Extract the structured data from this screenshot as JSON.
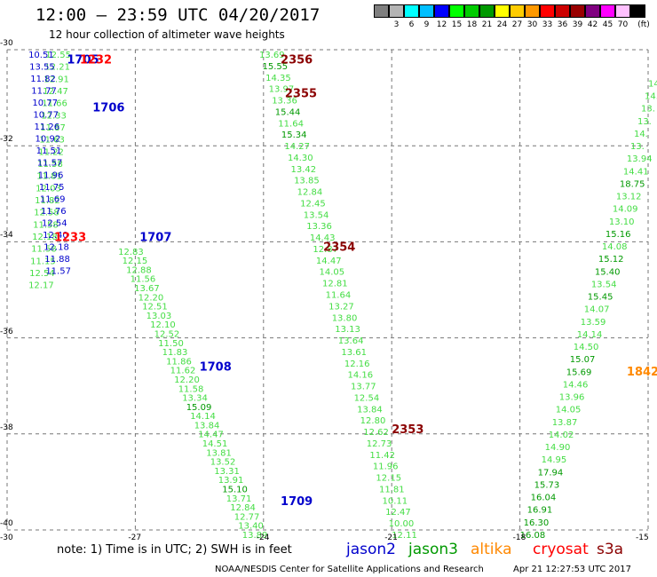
{
  "header": {
    "title": "12:00 – 23:59 UTC 04/20/2017",
    "subtitle": "12 hour collection of altimeter wave heights"
  },
  "color_scale": {
    "unit": "(ft)",
    "bins": [
      {
        "label": "",
        "color": "#7f7f7f"
      },
      {
        "label": "3",
        "color": "#b4b4b4"
      },
      {
        "label": "6",
        "color": "#00ffff"
      },
      {
        "label": "9",
        "color": "#00bfff"
      },
      {
        "label": "12",
        "color": "#0000ff"
      },
      {
        "label": "15",
        "color": "#00ff00"
      },
      {
        "label": "18",
        "color": "#00cc00"
      },
      {
        "label": "21",
        "color": "#009900"
      },
      {
        "label": "24",
        "color": "#ffff00"
      },
      {
        "label": "27",
        "color": "#ffcc00"
      },
      {
        "label": "30",
        "color": "#ff9900"
      },
      {
        "label": "33",
        "color": "#ff0000"
      },
      {
        "label": "36",
        "color": "#cc0000"
      },
      {
        "label": "39",
        "color": "#990000"
      },
      {
        "label": "42",
        "color": "#800080"
      },
      {
        "label": "45",
        "color": "#ff00ff"
      },
      {
        "label": "70",
        "color": "#ffc0ff"
      },
      {
        "label": "",
        "color": "#000000"
      }
    ]
  },
  "axes": {
    "lat_labels": [
      "-30",
      "-32",
      "-34",
      "-36",
      "-38",
      "-40"
    ],
    "lon_labels": [
      "-30",
      "-27",
      "-24",
      "-21",
      "-18",
      "-15"
    ],
    "lat_range": [
      -40,
      -30
    ],
    "lon_range": [
      -30,
      -15
    ]
  },
  "colors": {
    "grid": "#777777",
    "jason2": "#0000cc",
    "jason3": "#44dd44",
    "jason3_dark": "#009900",
    "altika": "#ff8800",
    "cryosat": "#ff0000",
    "s3a": "#8b0000"
  },
  "map_data": {
    "jason2_track1": {
      "start_lat": -30.0,
      "end_lat": -34.5,
      "start_lon": -29.5,
      "end_lon": -29.1,
      "values": [
        "10.51",
        "13.55",
        "11.82",
        "11.77",
        "10.77",
        "10.77",
        "11.26",
        "10.92",
        "11.51",
        "11.57",
        "11.96",
        "11.75",
        "11.69",
        "11.76",
        "12.54",
        "12.40",
        "12.18",
        "11.88",
        "11.57"
      ]
    },
    "jason3_track1": {
      "start_lat": -30.0,
      "end_lat": -34.8,
      "start_lon": -29.1,
      "end_lon": -29.5,
      "values": [
        "12.55",
        "12.21",
        "12.91",
        "12.47",
        "11.66",
        "12.33",
        "11.87",
        "11.63",
        "11.22",
        "11.58",
        "11.81",
        "12.03",
        "11.82",
        "12.58",
        "11.58",
        "12.18",
        "11.58",
        "11.15",
        "12.54",
        "12.17"
      ]
    },
    "track2": {
      "start_lat": -34.1,
      "end_lat": -40.0,
      "start_lon": -27.4,
      "end_lon": -24.5,
      "values": [
        "12.83",
        "12.15",
        "12.88",
        "11.56",
        "13.67",
        "12.20",
        "12.51",
        "13.03",
        "12.10",
        "12.52",
        "11.50",
        "11.83",
        "11.86",
        "11.62",
        "12.20",
        "11.58",
        "13.34",
        "15.09",
        "14.14",
        "13.84",
        "14.47",
        "14.51",
        "13.81",
        "13.52",
        "13.31",
        "13.91",
        "15.10",
        "13.71",
        "12.84",
        "12.77",
        "13.40",
        "13.89"
      ]
    },
    "track3": {
      "start_lat": -30.0,
      "end_lat": -40.0,
      "start_lon": -24.1,
      "end_lon": -21.0,
      "values": [
        "13.69",
        "15.55",
        "14.35",
        "13.97",
        "13.36",
        "15.44",
        "11.64",
        "15.34",
        "14.27",
        "14.30",
        "13.42",
        "13.85",
        "12.84",
        "12.45",
        "13.54",
        "13.36",
        "14.43",
        "12.87",
        "14.47",
        "14.05",
        "12.81",
        "11.64",
        "13.27",
        "13.80",
        "13.13",
        "13.64",
        "13.61",
        "12.16",
        "14.16",
        "13.77",
        "12.54",
        "13.84",
        "12.80",
        "12.62",
        "12.73",
        "11.42",
        "11.96",
        "12.15",
        "11.81",
        "10.11",
        "12.47",
        "10.00",
        "12.11"
      ]
    },
    "track4": {
      "start_lat": -30.6,
      "end_lat": -40.0,
      "start_lon": -15.0,
      "end_lon": -18.0,
      "values": [
        "14.",
        "14.",
        "13.",
        "13.",
        "14.",
        "13.",
        "13.94",
        "14.41",
        "18.75",
        "13.12",
        "14.09",
        "13.10",
        "15.16",
        "14.08",
        "15.12",
        "15.40",
        "13.54",
        "15.45",
        "14.07",
        "13.59",
        "14.14",
        "14.50",
        "15.07",
        "15.69",
        "14.46",
        "13.96",
        "14.05",
        "13.87",
        "14.02",
        "14.90",
        "14.95",
        "17.94",
        "15.73",
        "16.04",
        "16.91",
        "16.30",
        "16.08"
      ]
    },
    "pass_labels": [
      {
        "text": "1705",
        "lat": -30.1,
        "lon": -28.6,
        "sat": "jason2"
      },
      {
        "text": "1232",
        "lat": -30.1,
        "lon": -28.3,
        "sat": "cryosat"
      },
      {
        "text": "1706",
        "lat": -31.1,
        "lon": -28.0,
        "sat": "jason2"
      },
      {
        "text": "1233",
        "lat": -33.8,
        "lon": -28.9,
        "sat": "cryosat"
      },
      {
        "text": "1707",
        "lat": -33.8,
        "lon": -26.9,
        "sat": "jason2"
      },
      {
        "text": "1708",
        "lat": -36.5,
        "lon": -25.5,
        "sat": "jason2"
      },
      {
        "text": "1709",
        "lat": -39.3,
        "lon": -23.6,
        "sat": "jason2"
      },
      {
        "text": "2356",
        "lat": -30.1,
        "lon": -23.6,
        "sat": "s3a"
      },
      {
        "text": "2355",
        "lat": -30.8,
        "lon": -23.5,
        "sat": "s3a"
      },
      {
        "text": "2354",
        "lat": -34.0,
        "lon": -22.6,
        "sat": "s3a"
      },
      {
        "text": "2353",
        "lat": -37.8,
        "lon": -21.0,
        "sat": "s3a"
      },
      {
        "text": "1842",
        "lat": -36.6,
        "lon": -15.5,
        "sat": "altika"
      }
    ]
  },
  "footer": {
    "note": "note: 1) Time is in UTC; 2) SWH is in feet",
    "satellites": [
      {
        "name": "jason2",
        "key": "jason2"
      },
      {
        "name": "jason3",
        "key": "jason3_dark"
      },
      {
        "name": "altika",
        "key": "altika"
      },
      {
        "name": "cryosat",
        "key": "cryosat"
      },
      {
        "name": "s3a",
        "key": "s3a"
      }
    ],
    "credit": "NOAA/NESDIS Center for Satellite Applications and Research",
    "timestamp": "Apr 21 12:27:53 UTC 2017"
  }
}
